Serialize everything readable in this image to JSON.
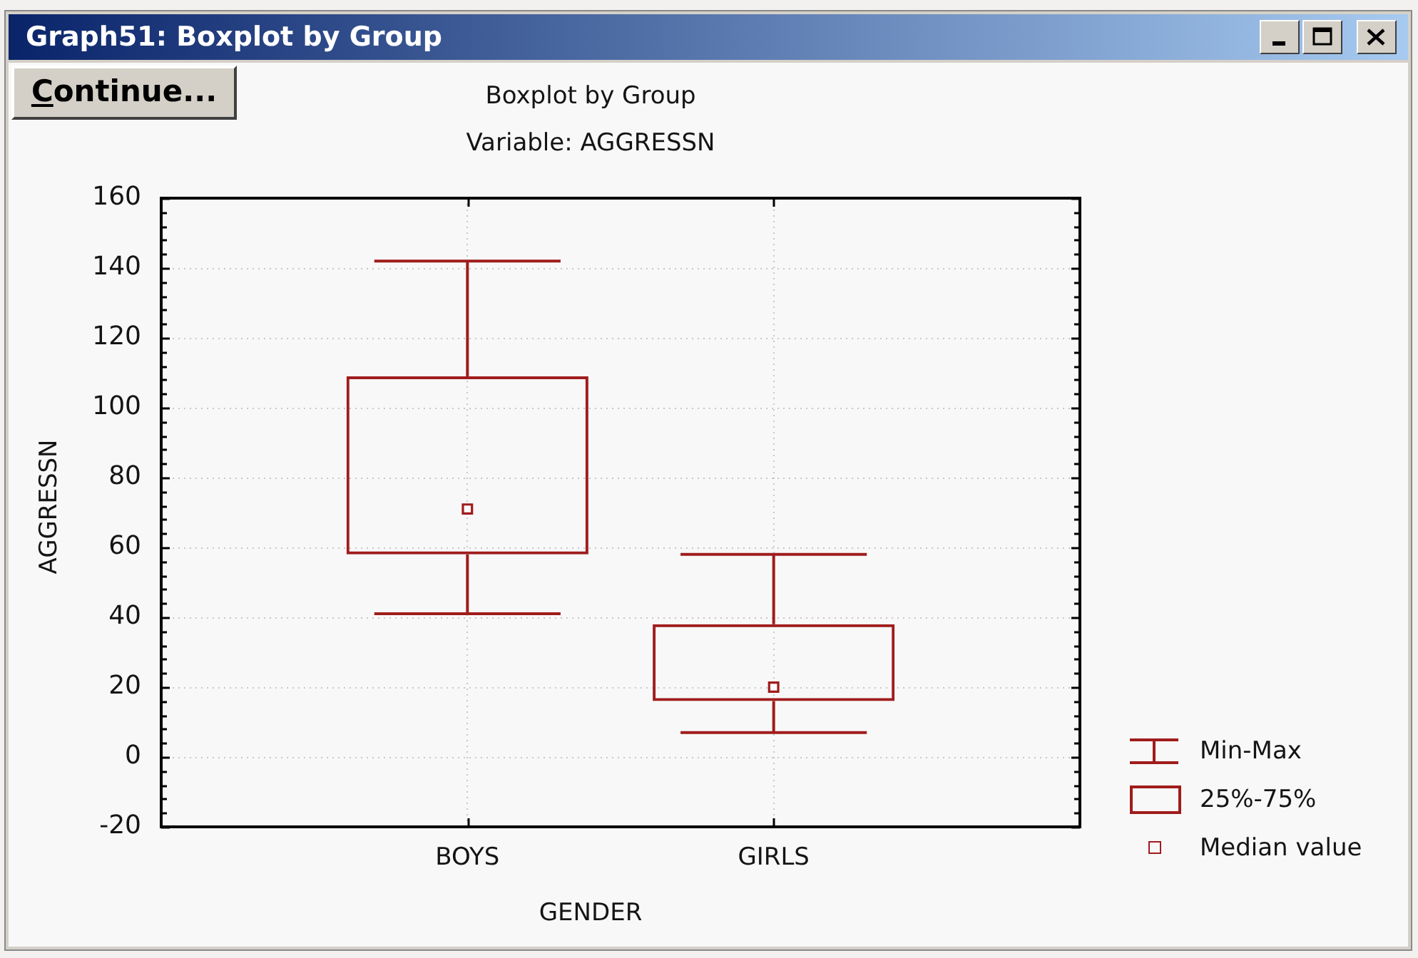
{
  "chart_data": {
    "type": "box",
    "title": "Boxplot by Group",
    "subtitle": "Variable: AGGRESSN",
    "xlabel": "GENDER",
    "ylabel": "AGGRESSN",
    "categories": [
      "BOYS",
      "GIRLS"
    ],
    "color": "#a01c1c",
    "boxes": [
      {
        "low": 41,
        "q1": 58,
        "median": 71,
        "q3": 109,
        "high": 142
      },
      {
        "low": 7,
        "q1": 16,
        "median": 20,
        "q3": 38,
        "high": 58
      }
    ],
    "ylim": [
      -20,
      160
    ],
    "yticks": [
      -20,
      {
        "value": -16,
        "label": null
      },
      {
        "value": -12,
        "label": null
      },
      {
        "value": -8,
        "label": null
      },
      {
        "value": -4,
        "label": null
      },
      0,
      {
        "value": 4,
        "label": null
      },
      {
        "value": 8,
        "label": null
      },
      {
        "value": 12,
        "label": null
      },
      {
        "value": 16,
        "label": null
      },
      20,
      {
        "value": 24,
        "label": null
      },
      {
        "value": 28,
        "label": null
      },
      {
        "value": 32,
        "label": null
      },
      {
        "value": 36,
        "label": null
      },
      40,
      {
        "value": 44,
        "label": null
      },
      {
        "value": 48,
        "label": null
      },
      {
        "value": 52,
        "label": null
      },
      {
        "value": 56,
        "label": null
      },
      60,
      {
        "value": 64,
        "label": null
      },
      {
        "value": 68,
        "label": null
      },
      {
        "value": 72,
        "label": null
      },
      {
        "value": 76,
        "label": null
      },
      80,
      {
        "value": 84,
        "label": null
      },
      {
        "value": 88,
        "label": null
      },
      {
        "value": 92,
        "label": null
      },
      {
        "value": 96,
        "label": null
      },
      100,
      {
        "value": 104,
        "label": null
      },
      {
        "value": 108,
        "label": null
      },
      {
        "value": 112,
        "label": null
      },
      {
        "value": 116,
        "label": null
      },
      120,
      {
        "value": 124,
        "label": null
      },
      {
        "value": 128,
        "label": null
      },
      {
        "value": 132,
        "label": null
      },
      {
        "value": 136,
        "label": null
      },
      140,
      {
        "value": 144,
        "label": null
      },
      {
        "value": 148,
        "label": null
      },
      {
        "value": 152,
        "label": null
      },
      {
        "value": 156,
        "label": null
      },
      160
    ],
    "grid": true,
    "annotations": [
      "Graph51: Boxplot by Group",
      "Continue...",
      "Min-Max",
      "25%-75%",
      "Median value"
    ]
  }
}
